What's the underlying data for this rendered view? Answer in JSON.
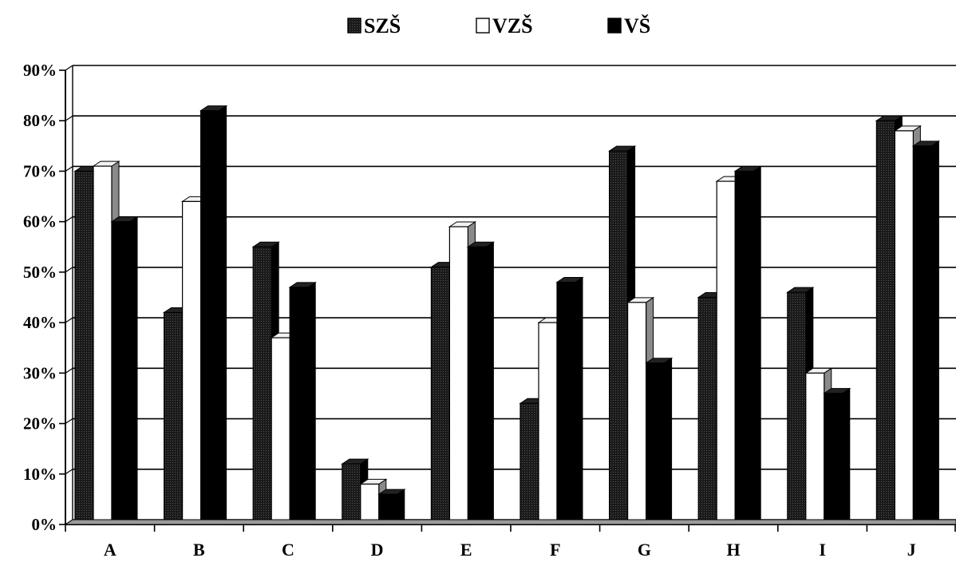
{
  "chart_data": {
    "type": "bar",
    "title": "",
    "xlabel": "",
    "ylabel": "",
    "categories": [
      "A",
      "B",
      "C",
      "D",
      "E",
      "F",
      "G",
      "H",
      "I",
      "J"
    ],
    "series": [
      {
        "name": "SZŠ",
        "color": "#1a1a1a",
        "values": [
          70,
          42,
          55,
          12,
          51,
          24,
          74,
          45,
          46,
          80
        ]
      },
      {
        "name": "VZŠ",
        "color": "#ffffff",
        "values": [
          71,
          64,
          37,
          8,
          59,
          40,
          44,
          68,
          30,
          78
        ]
      },
      {
        "name": "VŠ",
        "color": "#000000",
        "values": [
          60,
          82,
          47,
          6,
          55,
          48,
          32,
          70,
          26,
          75
        ]
      }
    ],
    "ylim": [
      0,
      90
    ],
    "yticks": [
      "0%",
      "10%",
      "20%",
      "30%",
      "40%",
      "50%",
      "60%",
      "70%",
      "80%",
      "90%"
    ],
    "grid": true,
    "legend_position": "top-center",
    "style": "3d-column"
  }
}
